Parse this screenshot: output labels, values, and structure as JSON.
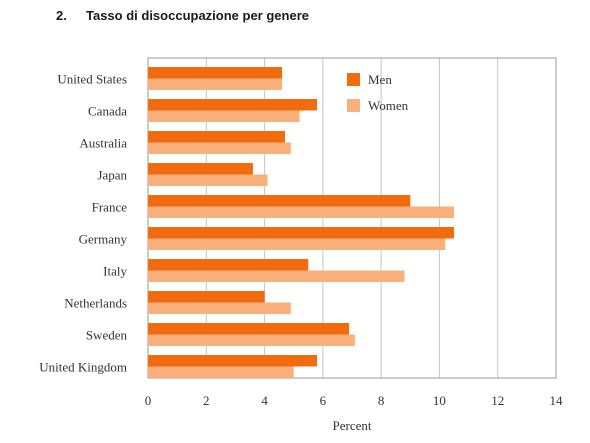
{
  "heading": {
    "number": "2.",
    "title": "Tasso di disoccupazione per genere"
  },
  "chart_data": {
    "type": "bar",
    "orientation": "horizontal",
    "categories": [
      "United States",
      "Canada",
      "Australia",
      "Japan",
      "France",
      "Germany",
      "Italy",
      "Netherlands",
      "Sweden",
      "United Kingdom"
    ],
    "series": [
      {
        "name": "Men",
        "color": "#f26b0f",
        "values": [
          4.6,
          5.8,
          4.7,
          3.6,
          9.0,
          10.5,
          5.5,
          4.0,
          6.9,
          5.8
        ]
      },
      {
        "name": "Women",
        "color": "#f9b07a",
        "values": [
          4.6,
          5.2,
          4.9,
          4.1,
          10.5,
          10.2,
          8.8,
          4.9,
          7.1,
          5.0
        ]
      }
    ],
    "xlabel": "Percent",
    "xlim": [
      0,
      14
    ],
    "xticks": [
      0,
      2,
      4,
      6,
      8,
      10,
      12,
      14
    ],
    "grid": true,
    "legend": "top-right"
  }
}
